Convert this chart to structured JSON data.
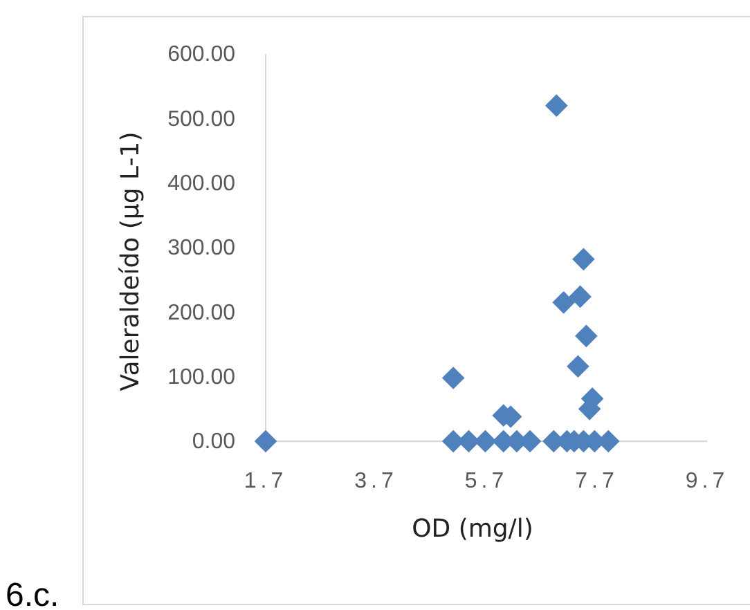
{
  "chart_data": {
    "type": "scatter",
    "xlabel": "OD (mg/l)",
    "ylabel": "Valeraldeído (µg L-1)",
    "annotations": [
      "6.c."
    ],
    "xlim": [
      1.7,
      9.7
    ],
    "xticks": [
      1.7,
      3.7,
      5.7,
      7.7,
      9.7
    ],
    "ylim": [
      0,
      600
    ],
    "yticks": [
      {
        "value": 0,
        "label": "0.00"
      },
      {
        "value": 100,
        "label": "100.00"
      },
      {
        "value": 200,
        "label": "200.00"
      },
      {
        "value": 300,
        "label": "300.00"
      },
      {
        "value": 400,
        "label": "400.00"
      },
      {
        "value": 500,
        "label": "500.00"
      },
      {
        "value": 600,
        "label": "600.00"
      }
    ],
    "grid": false,
    "marker": "diamond",
    "series": [
      {
        "color": "#4f81bd",
        "x": [
          6.97,
          7.46,
          7.1,
          7.4,
          7.51,
          7.36,
          7.62,
          7.57,
          5.1,
          6.01,
          6.14,
          1.7,
          5.1,
          5.38,
          5.68,
          6.01,
          6.25,
          6.49,
          6.92,
          7.16,
          7.29,
          7.46,
          7.66,
          7.91
        ],
        "values": [
          520,
          282,
          215,
          224,
          163,
          116,
          66,
          50,
          98,
          40,
          38,
          0,
          0,
          0,
          0,
          0,
          0,
          0,
          0,
          0,
          0,
          0,
          0,
          0
        ]
      }
    ]
  }
}
